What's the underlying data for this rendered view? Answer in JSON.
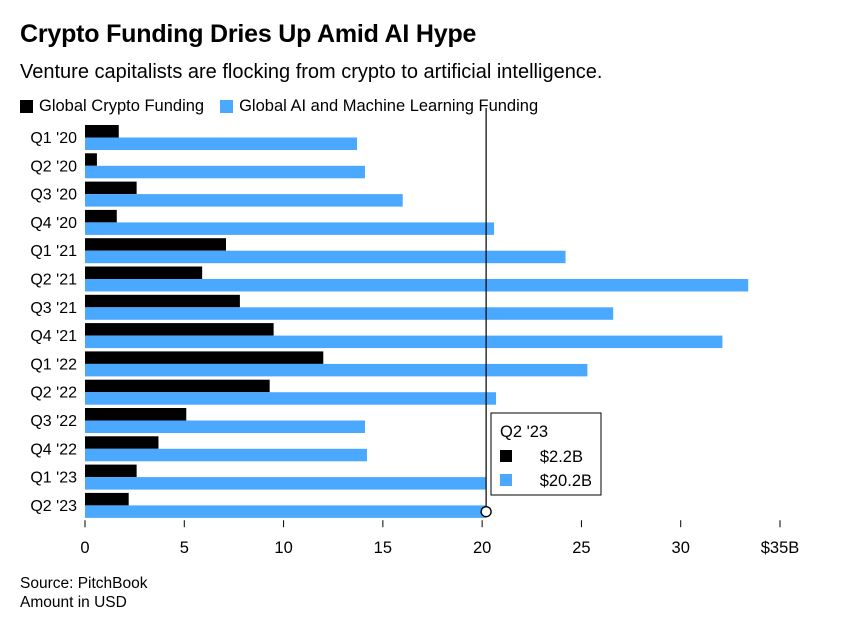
{
  "chart_data": {
    "type": "bar",
    "orientation": "horizontal",
    "title": "Crypto Funding Dries Up Amid AI Hype",
    "subtitle": "Venture capitalists are flocking from crypto to artificial intelligence.",
    "categories": [
      "Q1 '20",
      "Q2 '20",
      "Q3 '20",
      "Q4 '20",
      "Q1 '21",
      "Q2 '21",
      "Q3 '21",
      "Q4 '21",
      "Q1 '22",
      "Q2 '22",
      "Q3 '22",
      "Q4 '22",
      "Q1 '23",
      "Q2 '23"
    ],
    "series": [
      {
        "name": "Global Crypto Funding",
        "color": "#000000",
        "values": [
          1.7,
          0.6,
          2.6,
          1.6,
          7.1,
          5.9,
          7.8,
          9.5,
          12.0,
          9.3,
          5.1,
          3.7,
          2.6,
          2.2
        ]
      },
      {
        "name": "Global AI and Machine Learning Funding",
        "color": "#4aa8ff",
        "values": [
          13.7,
          14.1,
          16.0,
          20.6,
          24.2,
          33.4,
          26.6,
          32.1,
          25.3,
          20.7,
          14.1,
          14.2,
          20.2,
          20.2
        ]
      }
    ],
    "xlim": [
      0,
      35
    ],
    "x_ticks": [
      "0",
      "5",
      "10",
      "15",
      "20",
      "25",
      "30",
      "$35B"
    ],
    "x_tick_values": [
      0,
      5,
      10,
      15,
      20,
      25,
      30,
      35
    ],
    "grid": false,
    "legend_position": "top-left",
    "highlight": {
      "category": "Q2 '23",
      "crypto_label": "$2.2B",
      "ai_label": "$20.2B",
      "marker_value": 20.2
    }
  },
  "source_lines": [
    "Source: PitchBook",
    "Amount in USD"
  ]
}
